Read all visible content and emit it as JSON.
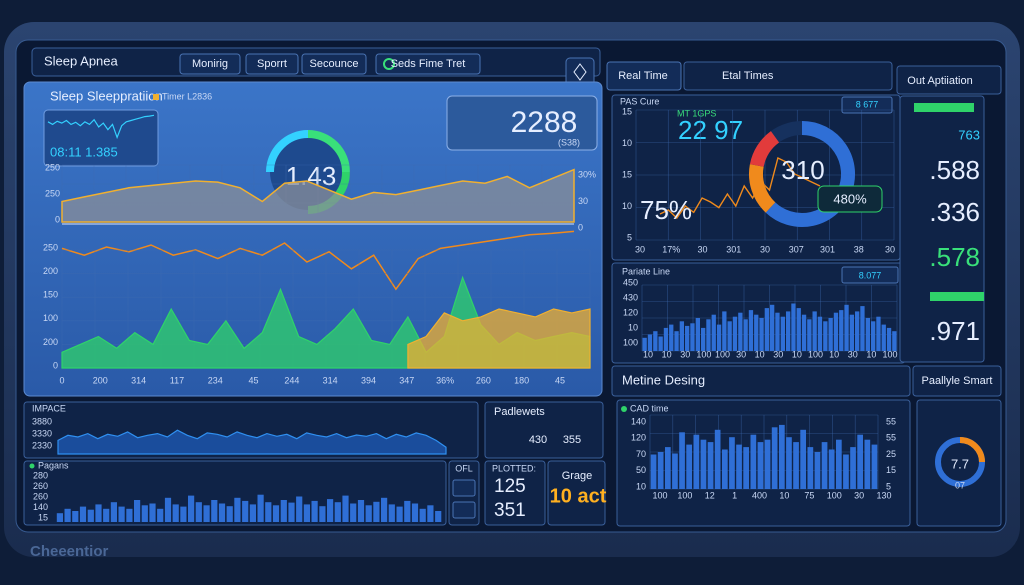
{
  "header": {
    "title": "Sleep Apnea",
    "tabs": [
      "Monirig",
      "Sporrt",
      "Secounce",
      "Seds Fime Tret"
    ]
  },
  "sleep": {
    "title": "Sleep Sleeppratiion",
    "legend": "Timer L2836",
    "mini_readout": "08:11 1.385",
    "gauge": "1.43",
    "readout": "2288",
    "readout_sub": "(S38)",
    "upper": {
      "y_labels": [
        "250",
        "250",
        "0"
      ],
      "right_labels": [
        "30%",
        "30",
        "0"
      ],
      "ylim": [
        0,
        250
      ],
      "values": [
        90,
        110,
        130,
        150,
        160,
        170,
        180,
        175,
        150,
        90,
        170,
        180,
        140,
        100,
        130,
        120,
        140,
        160,
        180,
        170,
        200,
        150,
        190,
        230
      ]
    },
    "trend": {
      "ylim": [
        0,
        100
      ],
      "values": [
        70,
        60,
        72,
        65,
        75,
        60,
        68,
        55,
        70,
        60,
        78,
        50,
        65,
        40,
        60,
        10,
        55,
        70,
        75,
        80,
        85,
        90,
        92,
        95
      ]
    },
    "lower": {
      "y_labels": [
        "250",
        "200",
        "150",
        "100",
        "200",
        "0"
      ],
      "ylim": [
        0,
        300
      ],
      "x_labels": [
        "0",
        "200",
        "314",
        "117",
        "234",
        "45",
        "244",
        "314",
        "394",
        "347",
        "36%",
        "260",
        "180",
        "45"
      ],
      "series": [
        {
          "color": "#2fd36a",
          "values": [
            40,
            60,
            80,
            50,
            90,
            60,
            150,
            70,
            60,
            120,
            50,
            90,
            200,
            80,
            60,
            100,
            150,
            70,
            60,
            130,
            40,
            80,
            230,
            110,
            60,
            90,
            70,
            80,
            90,
            80
          ]
        },
        {
          "color": "#f0b030",
          "values": [
            null,
            null,
            null,
            null,
            null,
            null,
            null,
            null,
            null,
            null,
            null,
            null,
            null,
            null,
            null,
            null,
            null,
            null,
            null,
            60,
            80,
            140,
            120,
            130,
            150,
            140,
            130,
            150,
            140,
            150
          ]
        }
      ]
    }
  },
  "realtime": {
    "tabs": [
      "Real Time",
      "Etal Times"
    ],
    "title": "PAS Cure",
    "sub": "MT 1GPS",
    "value": "22 97",
    "pct": "75%",
    "badge": "8 677",
    "donut_value": "310",
    "donut_badge": "480%",
    "y_labels": [
      "15",
      "10",
      "15",
      "10",
      "5"
    ],
    "x_labels": [
      "30",
      "17%",
      "30",
      "301",
      "30",
      "307",
      "301",
      "38",
      "30"
    ],
    "ylim": [
      0,
      100
    ],
    "values": [
      20,
      25,
      15,
      30,
      22,
      40,
      35,
      28,
      45,
      30,
      55,
      40,
      60,
      50,
      90,
      85,
      70,
      65,
      60,
      55
    ],
    "donut": [
      {
        "color": "#2f6fd6",
        "value": 62
      },
      {
        "color": "#f08a1c",
        "value": 16
      },
      {
        "color": "#e23b3b",
        "value": 12
      }
    ]
  },
  "pariate": {
    "title": "Pariate Line",
    "badge": "8.077",
    "y_labels": [
      "450",
      "430",
      "120",
      "10",
      "100"
    ],
    "x_labels": [
      "10",
      "10",
      "30",
      "100",
      "100",
      "30",
      "10",
      "30",
      "10",
      "100",
      "10",
      "30",
      "10",
      "100"
    ],
    "ylim": [
      0,
      100
    ],
    "values": [
      20,
      25,
      30,
      22,
      35,
      40,
      30,
      45,
      38,
      42,
      50,
      35,
      48,
      55,
      40,
      60,
      45,
      52,
      58,
      48,
      62,
      55,
      50,
      65,
      70,
      58,
      52,
      60,
      72,
      65,
      55,
      48,
      60,
      52,
      45,
      50,
      58,
      62,
      70,
      55,
      60,
      68,
      50,
      45,
      52,
      40,
      35,
      30
    ]
  },
  "output": {
    "title": "Out Aptiiation",
    "values": [
      "763",
      ".588",
      ".336",
      ".578",
      ".971"
    ]
  },
  "metine": {
    "title": "Metine Desing",
    "side": "Paallyle Smart"
  },
  "cad": {
    "title": "CAD time",
    "y_labels": [
      "140",
      "120",
      "70",
      "50",
      "10"
    ],
    "right_labels": [
      "55",
      "55",
      "25",
      "15",
      "5"
    ],
    "x_labels": [
      "100",
      "100",
      "12",
      "1",
      "400",
      "10",
      "75",
      "100",
      "30",
      "130"
    ],
    "ylim": [
      0,
      150
    ],
    "values": [
      70,
      75,
      85,
      72,
      115,
      90,
      110,
      100,
      95,
      120,
      80,
      105,
      90,
      85,
      110,
      95,
      100,
      125,
      130,
      105,
      95,
      120,
      85,
      75,
      95,
      80,
      100,
      70,
      85,
      110,
      100,
      90
    ]
  },
  "smallgauge": {
    "value": "7.7",
    "sub": "07"
  },
  "impace": {
    "title": "IMPACE",
    "y_labels": [
      "3880",
      "3330",
      "2330"
    ],
    "ylim": [
      0,
      100
    ],
    "values": [
      40,
      55,
      50,
      60,
      45,
      58,
      52,
      65,
      48,
      55,
      60,
      50,
      70,
      55,
      45,
      62,
      58,
      50,
      65,
      55,
      48,
      60,
      52,
      58,
      45,
      62,
      55,
      50,
      60,
      48,
      56,
      52,
      60,
      45,
      58,
      50,
      62,
      55,
      40,
      20
    ]
  },
  "pagans": {
    "title": "Pagans",
    "y_labels": [
      "280",
      "260",
      "260",
      "140",
      "15"
    ],
    "ylim": [
      0,
      100
    ],
    "values": [
      20,
      30,
      25,
      35,
      28,
      40,
      30,
      45,
      35,
      30,
      50,
      38,
      42,
      30,
      55,
      40,
      35,
      60,
      45,
      38,
      50,
      42,
      36,
      55,
      48,
      40,
      62,
      45,
      38,
      50,
      44,
      58,
      40,
      48,
      36,
      52,
      45,
      60,
      42,
      50,
      38,
      46,
      55,
      40,
      35,
      48,
      42,
      30,
      38,
      25
    ]
  },
  "side": {
    "label": "OFL"
  },
  "padlewets": {
    "title": "Padlewets",
    "a": "430",
    "b": "355"
  },
  "plotted": {
    "title": "PLOTTED:",
    "a": "125",
    "b": "351"
  },
  "grage": {
    "title": "Grage",
    "value": "10 act"
  },
  "footer": {
    "brand": "Cheeentior"
  }
}
